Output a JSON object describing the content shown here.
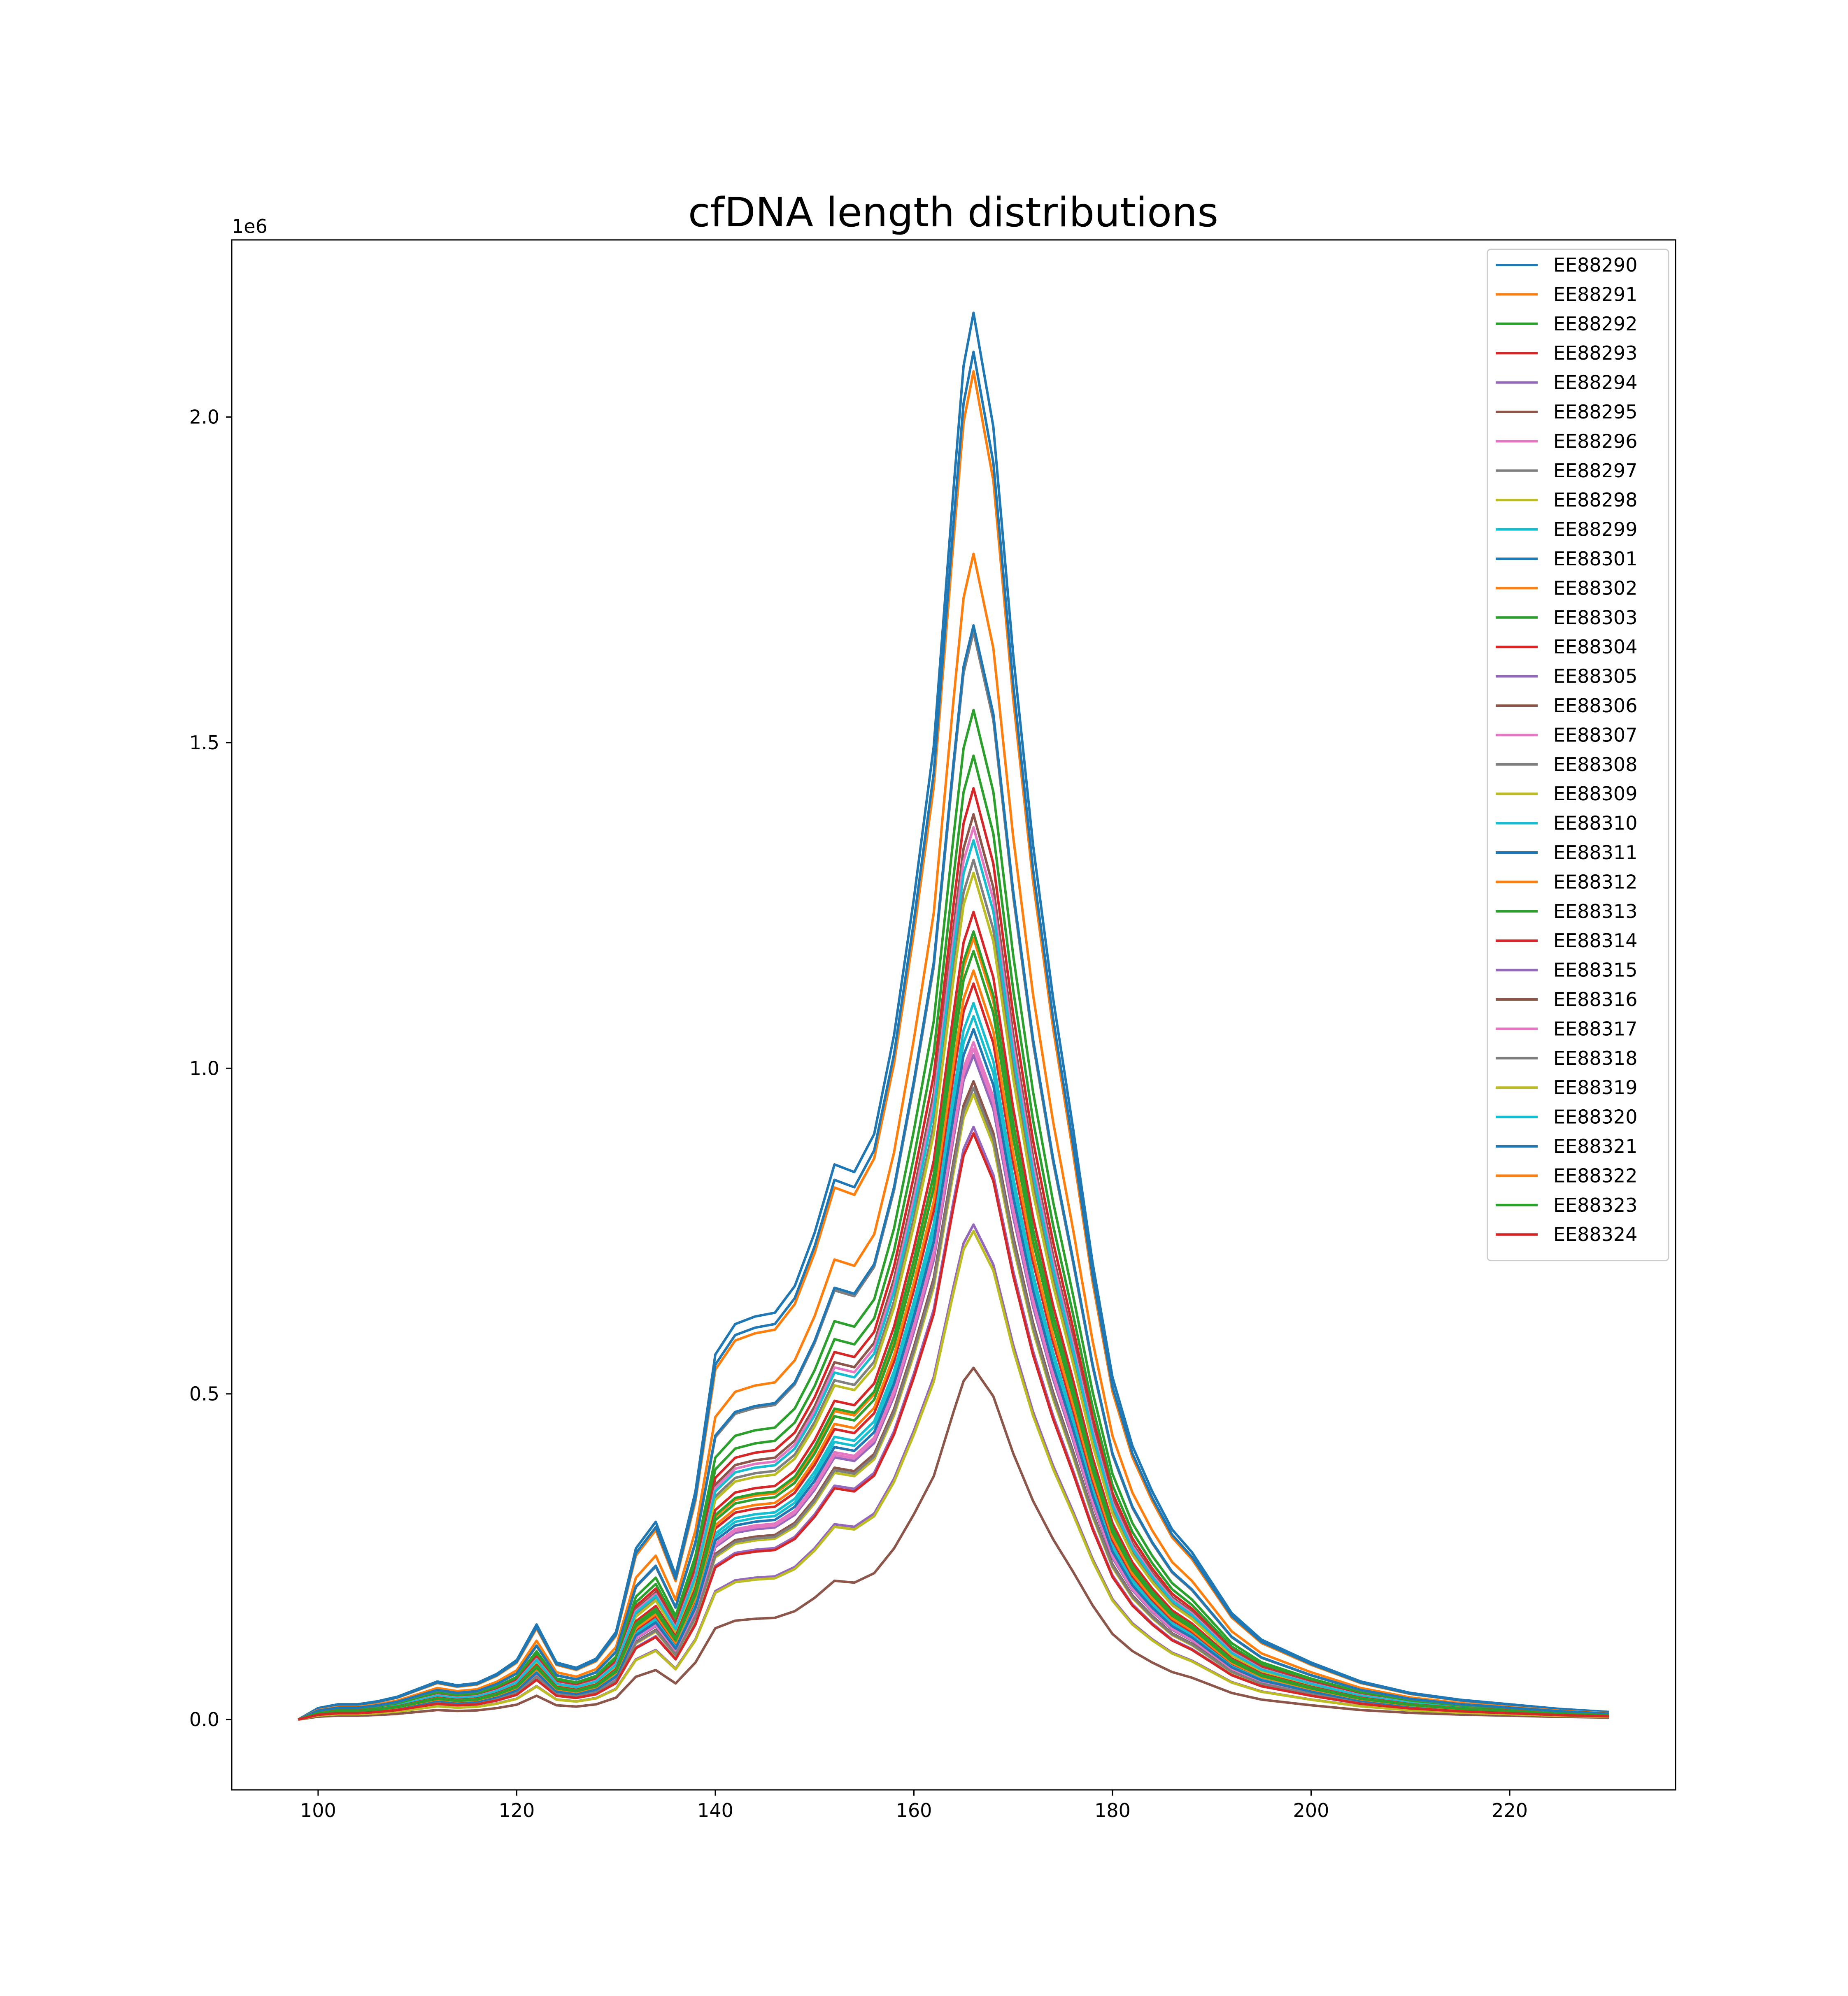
{
  "chart_data": {
    "type": "line",
    "title": "cfDNA length distributions",
    "xlabel": "",
    "ylabel": "",
    "y_offset_label": "1e6",
    "xlim": [
      91.3,
      236.7
    ],
    "ylim": [
      -0.108,
      2.272
    ],
    "xticks": [
      100,
      120,
      140,
      160,
      180,
      200,
      220
    ],
    "xtick_labels": [
      "100",
      "120",
      "140",
      "160",
      "180",
      "200",
      "220"
    ],
    "yticks": [
      0.0,
      0.5,
      1.0,
      1.5,
      2.0
    ],
    "ytick_labels": [
      "0.0",
      "0.5",
      "1.0",
      "1.5",
      "2.0"
    ],
    "y_unit": "millions (1e6)",
    "grid": false,
    "legend_position": "upper right",
    "x": [
      98,
      100,
      102,
      104,
      106,
      108,
      110,
      112,
      114,
      116,
      118,
      120,
      122,
      124,
      126,
      128,
      130,
      132,
      134,
      136,
      138,
      140,
      142,
      144,
      146,
      148,
      150,
      152,
      154,
      156,
      158,
      160,
      162,
      164,
      165,
      166,
      168,
      170,
      172,
      174,
      176,
      178,
      180,
      182,
      184,
      186,
      188,
      190,
      192,
      195,
      200,
      205,
      210,
      215,
      220,
      225,
      230
    ],
    "base_profile": [
      0,
      0.015,
      0.02,
      0.02,
      0.024,
      0.03,
      0.04,
      0.05,
      0.045,
      0.048,
      0.06,
      0.078,
      0.125,
      0.075,
      0.068,
      0.08,
      0.115,
      0.225,
      0.26,
      0.19,
      0.3,
      0.48,
      0.52,
      0.53,
      0.535,
      0.57,
      0.64,
      0.73,
      0.72,
      0.77,
      0.9,
      1.08,
      1.28,
      1.62,
      1.78,
      1.85,
      1.7,
      1.4,
      1.15,
      0.95,
      0.78,
      0.6,
      0.45,
      0.36,
      0.3,
      0.25,
      0.22,
      0.18,
      0.14,
      0.105,
      0.075,
      0.05,
      0.035,
      0.026,
      0.02,
      0.014,
      0.01
    ],
    "series": [
      {
        "name": "EE88290",
        "color": "#1f77b4",
        "peak": 2.16
      },
      {
        "name": "EE88291",
        "color": "#ff7f0e",
        "peak": 2.07
      },
      {
        "name": "EE88292",
        "color": "#2ca02c",
        "peak": 1.48
      },
      {
        "name": "EE88293",
        "color": "#d62728",
        "peak": 1.43
      },
      {
        "name": "EE88294",
        "color": "#9467bd",
        "peak": 0.91
      },
      {
        "name": "EE88295",
        "color": "#8c564b",
        "peak": 1.39
      },
      {
        "name": "EE88296",
        "color": "#e377c2",
        "peak": 1.37
      },
      {
        "name": "EE88297",
        "color": "#7f7f7f",
        "peak": 1.32
      },
      {
        "name": "EE88298",
        "color": "#bcbd22",
        "peak": 1.3
      },
      {
        "name": "EE88299",
        "color": "#17becf",
        "peak": 1.35
      },
      {
        "name": "EE88301",
        "color": "#1f77b4",
        "peak": 2.1
      },
      {
        "name": "EE88302",
        "color": "#ff7f0e",
        "peak": 1.79
      },
      {
        "name": "EE88303",
        "color": "#2ca02c",
        "peak": 1.55
      },
      {
        "name": "EE88304",
        "color": "#d62728",
        "peak": 1.24
      },
      {
        "name": "EE88305",
        "color": "#9467bd",
        "peak": 0.76
      },
      {
        "name": "EE88306",
        "color": "#8c564b",
        "peak": 0.54
      },
      {
        "name": "EE88307",
        "color": "#e377c2",
        "peak": 1.04
      },
      {
        "name": "EE88308",
        "color": "#7f7f7f",
        "peak": 1.67
      },
      {
        "name": "EE88309",
        "color": "#bcbd22",
        "peak": 0.96
      },
      {
        "name": "EE88310",
        "color": "#17becf",
        "peak": 1.1
      },
      {
        "name": "EE88311",
        "color": "#1f77b4",
        "peak": 1.68
      },
      {
        "name": "EE88312",
        "color": "#ff7f0e",
        "peak": 1.2
      },
      {
        "name": "EE88313",
        "color": "#2ca02c",
        "peak": 1.21
      },
      {
        "name": "EE88314",
        "color": "#d62728",
        "peak": 1.13
      },
      {
        "name": "EE88315",
        "color": "#9467bd",
        "peak": 1.02
      },
      {
        "name": "EE88316",
        "color": "#8c564b",
        "peak": 0.98
      },
      {
        "name": "EE88317",
        "color": "#e377c2",
        "peak": 1.03
      },
      {
        "name": "EE88318",
        "color": "#7f7f7f",
        "peak": 0.97
      },
      {
        "name": "EE88319",
        "color": "#bcbd22",
        "peak": 0.75
      },
      {
        "name": "EE88320",
        "color": "#17becf",
        "peak": 1.08
      },
      {
        "name": "EE88321",
        "color": "#1f77b4",
        "peak": 1.06
      },
      {
        "name": "EE88322",
        "color": "#ff7f0e",
        "peak": 1.15
      },
      {
        "name": "EE88323",
        "color": "#2ca02c",
        "peak": 1.18
      },
      {
        "name": "EE88324",
        "color": "#d62728",
        "peak": 0.9
      }
    ]
  }
}
